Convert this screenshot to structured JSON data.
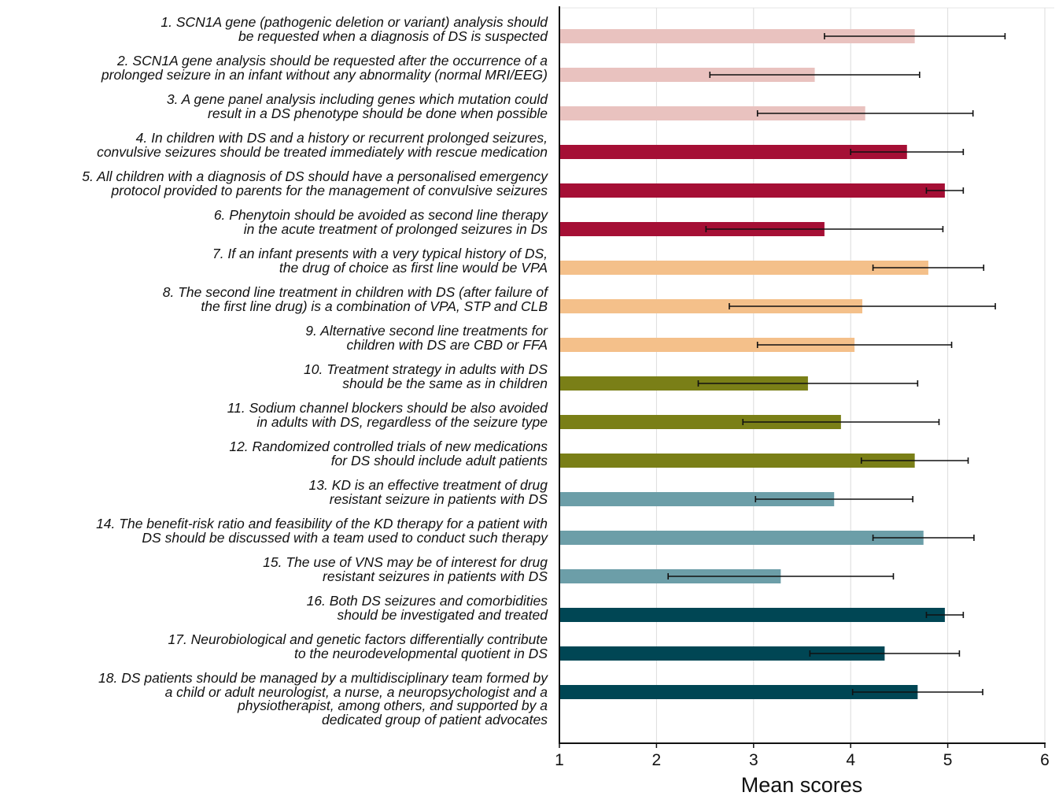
{
  "chart_data": {
    "type": "bar",
    "orientation": "horizontal",
    "xlabel": "Mean scores",
    "xlim": [
      1,
      6
    ],
    "xticks": [
      1,
      2,
      3,
      4,
      5,
      6
    ],
    "grid": "vertical",
    "legend": "none",
    "categories": [
      [
        "1. SCN1A gene (pathogenic deletion or variant) analysis should",
        "be requested when a diagnosis of DS is suspected"
      ],
      [
        "2. SCN1A gene analysis should be requested after the occurrence of a",
        "prolonged seizure in an infant without any abnormality (normal MRI/EEG)"
      ],
      [
        "3. A gene panel analysis including genes which mutation could",
        "result in a DS phenotype should be done when possible"
      ],
      [
        "4. In children with DS and a history or recurrent prolonged seizures,",
        "convulsive seizures should be treated immediately with rescue medication"
      ],
      [
        "5. All children with a diagnosis of DS should have a personalised emergency",
        "protocol provided to parents for the management of convulsive seizures"
      ],
      [
        "6. Phenytoin should be avoided as second line therapy",
        "in the acute treatment of prolonged seizures in Ds"
      ],
      [
        "7. If an infant presents with a very typical history of DS,",
        "the drug of choice as first line would be VPA"
      ],
      [
        "8. The second line treatment in children with DS (after failure of",
        "the first line drug) is a combination of VPA, STP and CLB"
      ],
      [
        "9. Alternative second line treatments for",
        "children with DS are CBD or FFA"
      ],
      [
        "10. Treatment strategy in adults with DS",
        "should be the same as in children"
      ],
      [
        "11. Sodium channel blockers should be also avoided",
        "in adults with DS, regardless of the seizure type"
      ],
      [
        "12. Randomized controlled trials of new medications",
        "for DS should include adult patients"
      ],
      [
        "13. KD is an effective treatment of drug",
        "resistant seizure in patients with DS"
      ],
      [
        "14. The benefit-risk ratio and feasibility of the KD therapy for a patient with",
        "DS should be discussed with a team used to conduct such therapy"
      ],
      [
        "15. The use of VNS may be of interest for drug",
        "resistant seizures in patients with DS"
      ],
      [
        "16. Both DS seizures and comorbidities",
        "should be investigated and treated"
      ],
      [
        "17. Neurobiological and genetic factors differentially contribute",
        "to the neurodevelopmental quotient in DS"
      ],
      [
        "18. DS patients should be managed by a multidisciplinary team formed by",
        "a child or adult neurologist, a nurse, a neuropsychologist and a",
        "physiotherapist, among others, and supported by a",
        "dedicated group of patient advocates"
      ]
    ],
    "values": [
      4.66,
      3.63,
      4.15,
      4.58,
      4.97,
      3.73,
      4.8,
      4.12,
      4.04,
      3.56,
      3.9,
      4.66,
      3.83,
      4.75,
      3.28,
      4.97,
      4.35,
      4.69
    ],
    "error": [
      0.93,
      1.08,
      1.11,
      0.58,
      0.19,
      1.22,
      0.57,
      1.37,
      1.0,
      1.13,
      1.01,
      0.55,
      0.81,
      0.52,
      1.16,
      0.19,
      0.77,
      0.67
    ],
    "colors": [
      "#e9c2bf",
      "#e9c2bf",
      "#e9c2bf",
      "#a50f35",
      "#a50f35",
      "#a50f35",
      "#f4c08a",
      "#f4c08a",
      "#f4c08a",
      "#7a7f17",
      "#7a7f17",
      "#7a7f17",
      "#6c9ea8",
      "#6c9ea8",
      "#6c9ea8",
      "#004654",
      "#004654",
      "#004654"
    ]
  }
}
